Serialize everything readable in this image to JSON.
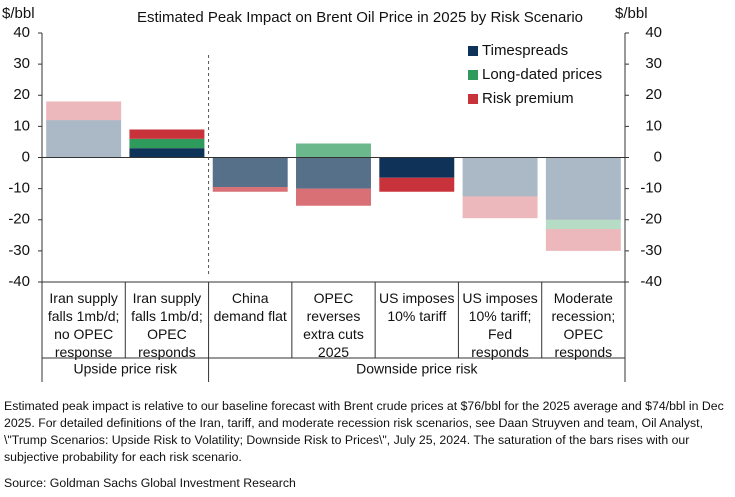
{
  "chart_data": {
    "type": "stacked-bar",
    "title": "Estimated Peak Impact on Brent Oil Price in 2025 by Risk Scenario",
    "y_unit": "$/bbl",
    "y2_unit": "$/bbl",
    "categories": [
      "Iran supply\nfalls 1mb/d;\nno OPEC\nresponse",
      "Iran supply\nfalls 1mb/d;\nOPEC\nresponds",
      "China\ndemand flat",
      "OPEC\nreverses\nextra cuts\n2025",
      "US imposes\n10% tariff",
      "US imposes\n10% tariff;\nFed\nresponds",
      "Moderate\nrecession;\nOPEC\nresponds"
    ],
    "groups": [
      "Upside price risk",
      "Downside price risk"
    ],
    "series": [
      {
        "name": "Timespreads",
        "color": "#0f3358",
        "values": [
          12,
          3,
          -9.5,
          -10,
          -6.5,
          -12.5,
          -20
        ]
      },
      {
        "name": "Long-dated prices",
        "color": "#2e9a5c",
        "values": [
          0,
          3,
          0,
          4.5,
          0,
          0,
          -3
        ]
      },
      {
        "name": "Risk premium",
        "color": "#c8333b",
        "values": [
          6,
          3,
          -1.5,
          -5.5,
          -4.5,
          -7,
          -7
        ]
      }
    ],
    "bar_opacity": [
      0.35,
      1,
      0.7,
      0.7,
      1,
      0.35,
      0.35
    ],
    "ylim": [
      -40,
      40
    ],
    "yticks": [
      -40,
      -30,
      -20,
      -10,
      0,
      10,
      20,
      30,
      40
    ],
    "y2lim": [
      -40,
      40
    ],
    "y2ticks": [
      -40,
      -30,
      -20,
      -10,
      0,
      10,
      20,
      30,
      40
    ],
    "legend": "upper right"
  },
  "footnote": "Estimated peak impact is relative to our baseline forecast with Brent crude prices at $76/bbl for the 2025 average and $74/bbl in Dec 2025. For detailed definitions of the Iran, tariff, and moderate recession risk scenarios, see Daan Struyven and team, Oil Analyst, \\\"Trump Scenarios: Upside Risk to Volatility; Downside Risk to Prices\\\", July 25, 2024. The saturation of the bars rises with our subjective probability for each risk scenario.",
  "source": "Source: Goldman Sachs Global Investment Research"
}
